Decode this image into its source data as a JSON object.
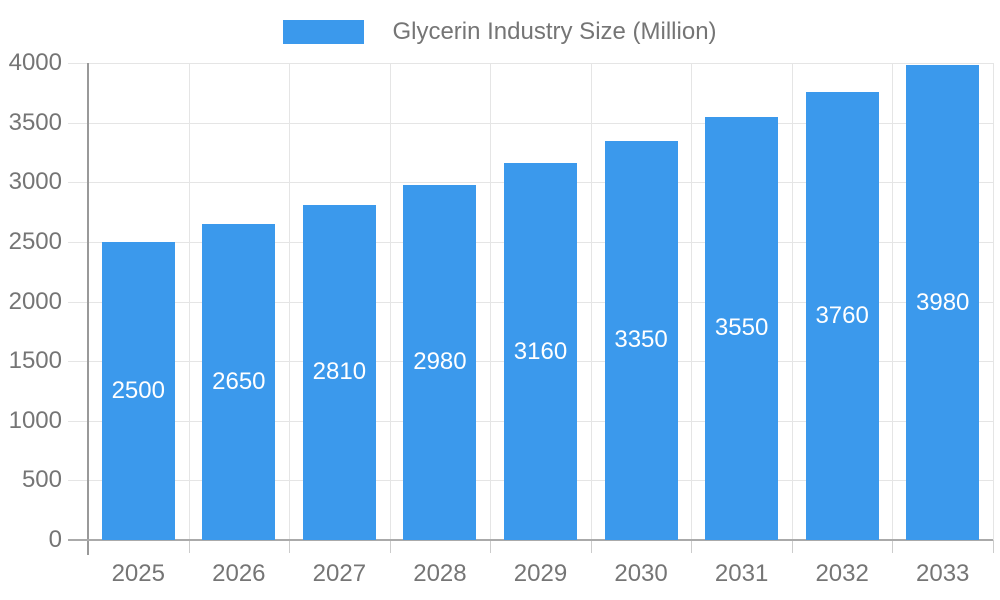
{
  "chart_data": {
    "type": "bar",
    "title": "Glycerin Industry Size (Million)",
    "categories": [
      "2025",
      "2026",
      "2027",
      "2028",
      "2029",
      "2030",
      "2031",
      "2032",
      "2033"
    ],
    "values": [
      2500,
      2650,
      2810,
      2980,
      3160,
      3350,
      3550,
      3760,
      3980
    ],
    "xlabel": "",
    "ylabel": "",
    "ylim": [
      0,
      4000
    ],
    "yticks": [
      0,
      500,
      1000,
      1500,
      2000,
      2500,
      3000,
      3500,
      4000
    ],
    "grid": true,
    "bar_labels_inside": true,
    "legend_position": "top-center",
    "colors": {
      "bar": "#3B99EC",
      "grid": "#E5E5E5",
      "axis": "#999999",
      "tick": "#CCCCCC",
      "text": "#757575",
      "bar_label_text": "#FFFFFF",
      "background": "#FFFFFF"
    }
  }
}
